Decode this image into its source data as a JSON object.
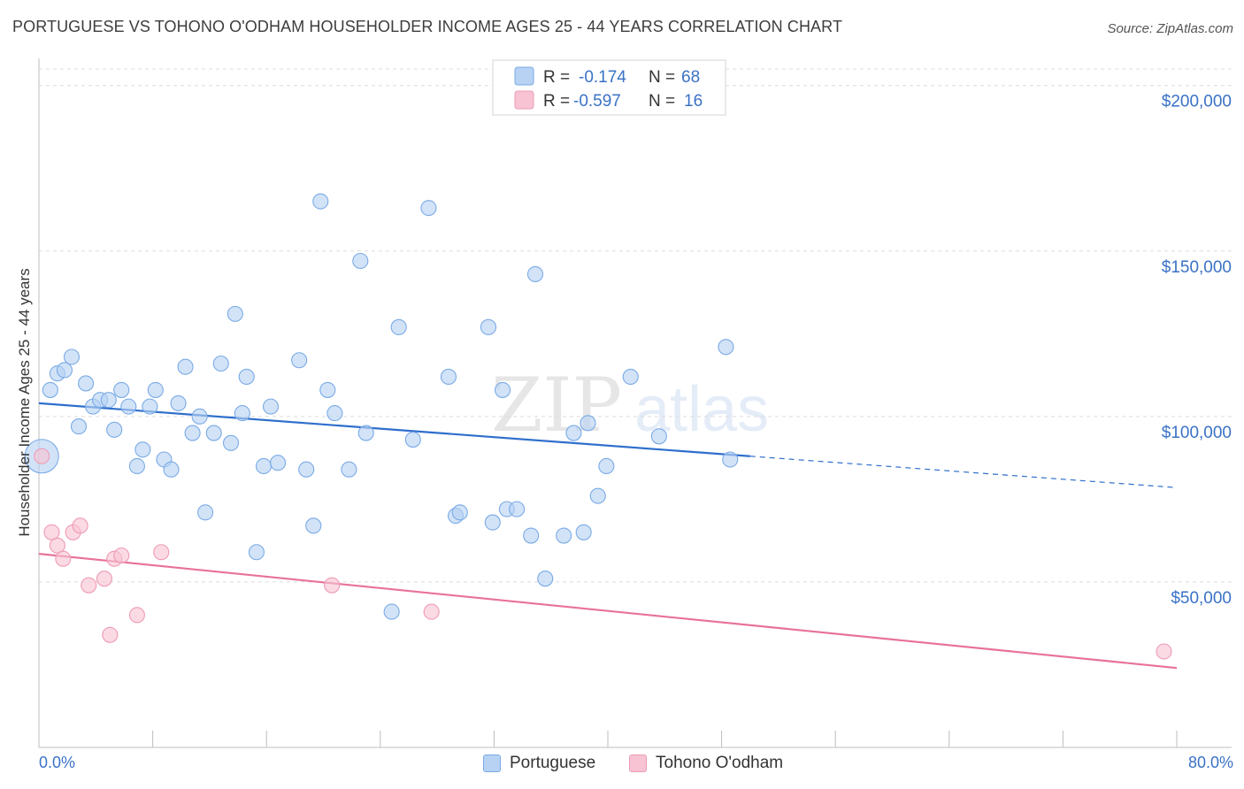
{
  "header": {
    "title": "PORTUGUESE VS TOHONO O'ODHAM HOUSEHOLDER INCOME AGES 25 - 44 YEARS CORRELATION CHART",
    "source": "Source: ZipAtlas.com"
  },
  "watermark": {
    "zip": "ZIP",
    "atlas": "atlas"
  },
  "legend": {
    "items": [
      {
        "r_label": "R =",
        "r_value": "-0.174",
        "n_label": "N =",
        "n_value": "68"
      },
      {
        "r_label": "R =",
        "r_value": "-0.597",
        "n_label": "N =",
        "n_value": "16"
      }
    ]
  },
  "bottom_legend": {
    "series1": "Portuguese",
    "series2": "Tohono O'odham"
  },
  "colors": {
    "blue_fill": "#b7d2f3",
    "blue_stroke": "#7aaae6",
    "blue_line": "#2f6fcc",
    "pink_fill": "#f8c3d3",
    "pink_stroke": "#ee9bb5",
    "pink_line": "#e8719a",
    "tick_label": "#3a72c6",
    "grid": "#dcdcdc"
  },
  "chart_data": {
    "type": "scatter",
    "title": "PORTUGUESE VS TOHONO O'ODHAM HOUSEHOLDER INCOME AGES 25 - 44 YEARS CORRELATION CHART",
    "xlabel": "",
    "ylabel": "Householder Income Ages 25 - 44 years",
    "xlim": [
      0,
      80
    ],
    "ylim": [
      0,
      205000
    ],
    "x_tick_labels": [
      "0.0%",
      "80.0%"
    ],
    "y_ticks": [
      50000,
      100000,
      150000,
      200000
    ],
    "y_tick_labels": [
      "$50,000",
      "$100,000",
      "$150,000",
      "$200,000"
    ],
    "grid": true,
    "series": [
      {
        "name": "Portuguese",
        "r": -0.174,
        "n": 68,
        "trend": {
          "x0": 0,
          "y0": 104000,
          "x_solid_end": 50,
          "y_solid_end": 88000,
          "x1": 80,
          "y1": 78500
        },
        "points": [
          {
            "x": 0.2,
            "y": 88000,
            "big": true
          },
          {
            "x": 0.8,
            "y": 108000
          },
          {
            "x": 1.3,
            "y": 113000
          },
          {
            "x": 1.8,
            "y": 114000
          },
          {
            "x": 2.3,
            "y": 118000
          },
          {
            "x": 2.8,
            "y": 97000
          },
          {
            "x": 3.3,
            "y": 110000
          },
          {
            "x": 3.8,
            "y": 103000
          },
          {
            "x": 4.3,
            "y": 105000
          },
          {
            "x": 4.9,
            "y": 105000
          },
          {
            "x": 5.3,
            "y": 96000
          },
          {
            "x": 5.8,
            "y": 108000
          },
          {
            "x": 6.3,
            "y": 103000
          },
          {
            "x": 6.9,
            "y": 85000
          },
          {
            "x": 7.3,
            "y": 90000
          },
          {
            "x": 7.8,
            "y": 103000
          },
          {
            "x": 8.2,
            "y": 108000
          },
          {
            "x": 8.8,
            "y": 87000
          },
          {
            "x": 9.3,
            "y": 84000
          },
          {
            "x": 9.8,
            "y": 104000
          },
          {
            "x": 10.3,
            "y": 115000
          },
          {
            "x": 10.8,
            "y": 95000
          },
          {
            "x": 11.3,
            "y": 100000
          },
          {
            "x": 11.7,
            "y": 71000
          },
          {
            "x": 12.3,
            "y": 95000
          },
          {
            "x": 12.8,
            "y": 116000
          },
          {
            "x": 13.5,
            "y": 92000
          },
          {
            "x": 13.8,
            "y": 131000
          },
          {
            "x": 14.3,
            "y": 101000
          },
          {
            "x": 14.6,
            "y": 112000
          },
          {
            "x": 15.3,
            "y": 59000
          },
          {
            "x": 15.8,
            "y": 85000
          },
          {
            "x": 16.3,
            "y": 103000
          },
          {
            "x": 16.8,
            "y": 86000
          },
          {
            "x": 18.3,
            "y": 117000
          },
          {
            "x": 18.8,
            "y": 84000
          },
          {
            "x": 19.3,
            "y": 67000
          },
          {
            "x": 19.8,
            "y": 165000
          },
          {
            "x": 20.3,
            "y": 108000
          },
          {
            "x": 20.8,
            "y": 101000
          },
          {
            "x": 21.8,
            "y": 84000
          },
          {
            "x": 22.6,
            "y": 147000
          },
          {
            "x": 23.0,
            "y": 95000
          },
          {
            "x": 24.8,
            "y": 41000
          },
          {
            "x": 25.3,
            "y": 127000
          },
          {
            "x": 26.3,
            "y": 93000
          },
          {
            "x": 27.4,
            "y": 163000
          },
          {
            "x": 28.8,
            "y": 112000
          },
          {
            "x": 29.3,
            "y": 70000
          },
          {
            "x": 29.6,
            "y": 71000
          },
          {
            "x": 31.6,
            "y": 127000
          },
          {
            "x": 31.9,
            "y": 68000
          },
          {
            "x": 32.6,
            "y": 108000
          },
          {
            "x": 32.9,
            "y": 72000
          },
          {
            "x": 33.6,
            "y": 72000
          },
          {
            "x": 34.6,
            "y": 64000
          },
          {
            "x": 34.9,
            "y": 143000
          },
          {
            "x": 35.6,
            "y": 51000
          },
          {
            "x": 36.9,
            "y": 64000
          },
          {
            "x": 37.6,
            "y": 95000
          },
          {
            "x": 38.3,
            "y": 65000
          },
          {
            "x": 38.6,
            "y": 98000
          },
          {
            "x": 39.3,
            "y": 76000
          },
          {
            "x": 39.9,
            "y": 85000
          },
          {
            "x": 41.6,
            "y": 112000
          },
          {
            "x": 43.6,
            "y": 94000
          },
          {
            "x": 48.3,
            "y": 121000
          },
          {
            "x": 48.6,
            "y": 87000
          }
        ]
      },
      {
        "name": "Tohono O'odham",
        "r": -0.597,
        "n": 16,
        "trend": {
          "x0": 0,
          "y0": 58500,
          "x1": 80,
          "y1": 24000
        },
        "points": [
          {
            "x": 0.2,
            "y": 88000
          },
          {
            "x": 0.9,
            "y": 65000
          },
          {
            "x": 1.3,
            "y": 61000
          },
          {
            "x": 1.7,
            "y": 57000
          },
          {
            "x": 2.4,
            "y": 65000
          },
          {
            "x": 2.9,
            "y": 67000
          },
          {
            "x": 3.5,
            "y": 49000
          },
          {
            "x": 4.6,
            "y": 51000
          },
          {
            "x": 5.0,
            "y": 34000
          },
          {
            "x": 5.3,
            "y": 57000
          },
          {
            "x": 5.8,
            "y": 58000
          },
          {
            "x": 6.9,
            "y": 40000
          },
          {
            "x": 8.6,
            "y": 59000
          },
          {
            "x": 20.6,
            "y": 49000
          },
          {
            "x": 27.6,
            "y": 41000
          },
          {
            "x": 79.1,
            "y": 29000
          }
        ]
      }
    ]
  }
}
